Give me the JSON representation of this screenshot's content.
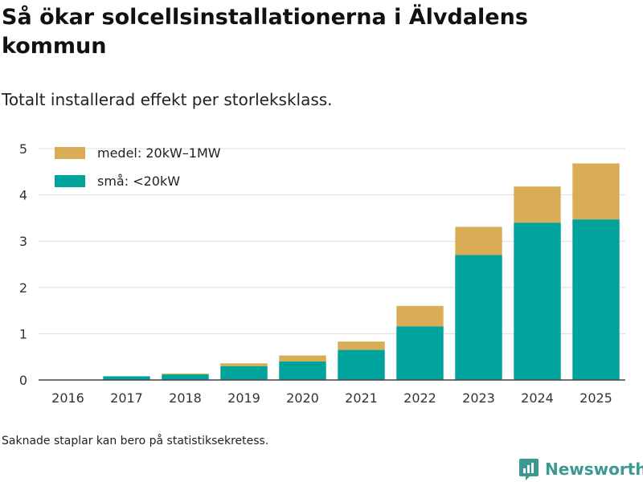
{
  "title": "Så ökar solcellsinstallationerna i Älvdalens kommun",
  "subtitle": "Totalt installerad effekt per storleksklass.",
  "footnote": "Saknade staplar kan bero på statistiksekretess.",
  "brand": {
    "name": "Newsworthy",
    "color": "#3a9a91",
    "icon": "newsworthy-logo-icon"
  },
  "colors": {
    "smal": "#00a39b",
    "medel": "#d9ad55",
    "grid": "#dddddd",
    "axis": "#444444"
  },
  "chart_data": {
    "type": "bar",
    "stacked": true,
    "title": "Så ökar solcellsinstallationerna i Älvdalens kommun",
    "subtitle": "Totalt installerad effekt per storleksklass.",
    "xlabel": "",
    "ylabel": "",
    "ylim": [
      0,
      5
    ],
    "yticks": [
      "0",
      "1",
      "2",
      "3",
      "4",
      "5"
    ],
    "grid": true,
    "legend_position": "top-left",
    "categories": [
      "2016",
      "2017",
      "2018",
      "2019",
      "2020",
      "2021",
      "2022",
      "2023",
      "2024",
      "2025"
    ],
    "series": [
      {
        "name": "små: <20kW",
        "color": "#00a39b",
        "values": [
          0,
          0.08,
          0.12,
          0.3,
          0.4,
          0.65,
          1.16,
          2.7,
          3.4,
          3.47
        ]
      },
      {
        "name": "medel: 20kW–1MW",
        "color": "#d9ad55",
        "values": [
          0,
          0,
          0.02,
          0.06,
          0.13,
          0.18,
          0.44,
          0.61,
          0.78,
          1.21
        ]
      }
    ],
    "legend": [
      "medel: 20kW–1MW",
      "små: <20kW"
    ]
  }
}
